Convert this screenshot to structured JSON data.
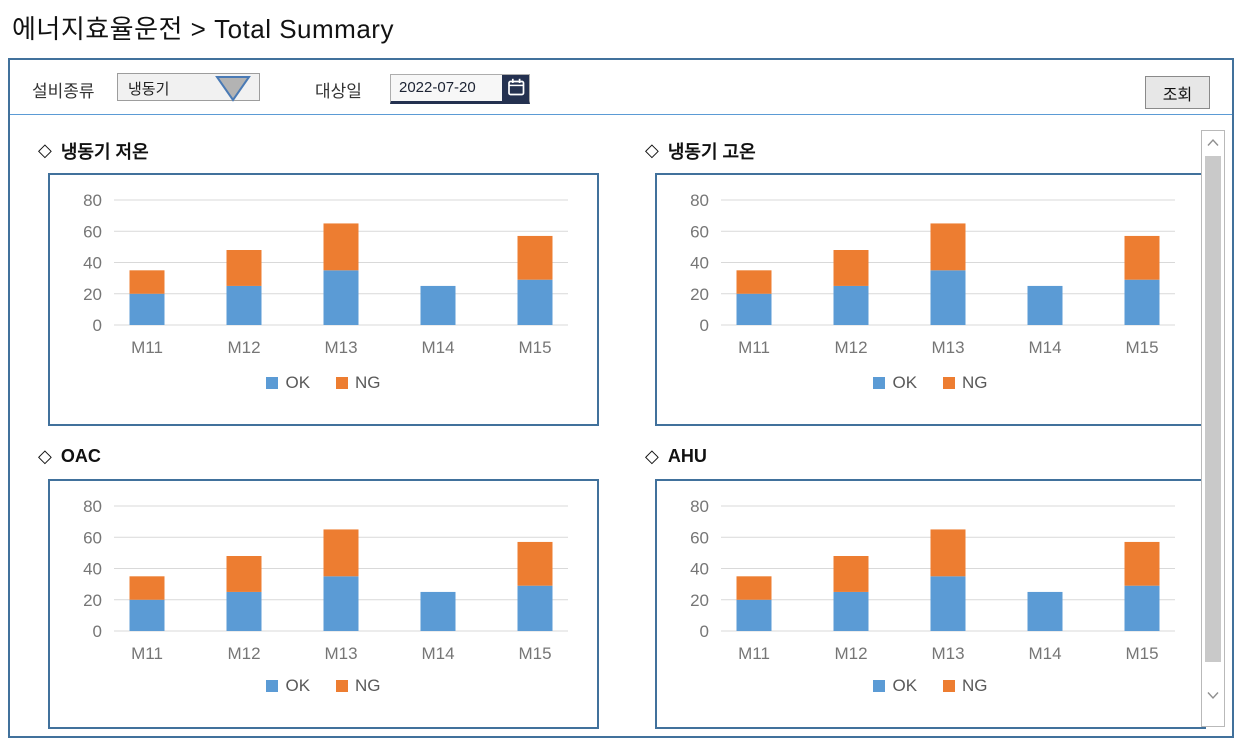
{
  "page": {
    "title": "에너지효율운전 > Total Summary"
  },
  "toolbar": {
    "equipment_type_label": "설비종류",
    "equipment_type_value": "냉동기",
    "target_date_label": "대상일",
    "target_date_value": "2022-07-20",
    "search_button_label": "조회"
  },
  "header_bullet": "◇",
  "colors": {
    "ok_series": "#5B9BD5",
    "ng_series": "#ED7D31",
    "panel_border": "#41719C",
    "toolbar_separator": "#5B9BD5",
    "axis_text": "#767676",
    "gridline": "#D9D9D9",
    "date_accent_navy": "#243150"
  },
  "chart_data": [
    {
      "type": "bar",
      "stacked": true,
      "title": "냉동기 저온",
      "categories": [
        "M11",
        "M12",
        "M13",
        "M14",
        "M15"
      ],
      "series": [
        {
          "name": "OK",
          "color": "#5B9BD5",
          "values": [
            20,
            25,
            35,
            25,
            29
          ]
        },
        {
          "name": "NG",
          "color": "#ED7D31",
          "values": [
            15,
            23,
            30,
            0,
            28
          ]
        }
      ],
      "ylim": [
        0,
        80
      ],
      "yticks": [
        0,
        20,
        40,
        60,
        80
      ],
      "grid": true,
      "legend_position": "bottom"
    },
    {
      "type": "bar",
      "stacked": true,
      "title": "냉동기 고온",
      "categories": [
        "M11",
        "M12",
        "M13",
        "M14",
        "M15"
      ],
      "series": [
        {
          "name": "OK",
          "color": "#5B9BD5",
          "values": [
            20,
            25,
            35,
            25,
            29
          ]
        },
        {
          "name": "NG",
          "color": "#ED7D31",
          "values": [
            15,
            23,
            30,
            0,
            28
          ]
        }
      ],
      "ylim": [
        0,
        80
      ],
      "yticks": [
        0,
        20,
        40,
        60,
        80
      ],
      "grid": true,
      "legend_position": "bottom"
    },
    {
      "type": "bar",
      "stacked": true,
      "title": "OAC",
      "categories": [
        "M11",
        "M12",
        "M13",
        "M14",
        "M15"
      ],
      "series": [
        {
          "name": "OK",
          "color": "#5B9BD5",
          "values": [
            20,
            25,
            35,
            25,
            29
          ]
        },
        {
          "name": "NG",
          "color": "#ED7D31",
          "values": [
            15,
            23,
            30,
            0,
            28
          ]
        }
      ],
      "ylim": [
        0,
        80
      ],
      "yticks": [
        0,
        20,
        40,
        60,
        80
      ],
      "grid": true,
      "legend_position": "bottom"
    },
    {
      "type": "bar",
      "stacked": true,
      "title": "AHU",
      "categories": [
        "M11",
        "M12",
        "M13",
        "M14",
        "M15"
      ],
      "series": [
        {
          "name": "OK",
          "color": "#5B9BD5",
          "values": [
            20,
            25,
            35,
            25,
            29
          ]
        },
        {
          "name": "NG",
          "color": "#ED7D31",
          "values": [
            15,
            23,
            30,
            0,
            28
          ]
        }
      ],
      "ylim": [
        0,
        80
      ],
      "yticks": [
        0,
        20,
        40,
        60,
        80
      ],
      "grid": true,
      "legend_position": "bottom"
    }
  ]
}
